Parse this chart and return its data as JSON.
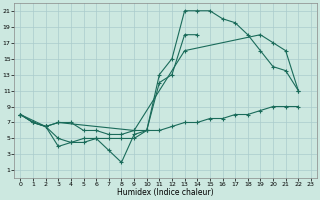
{
  "xlabel": "Humidex (Indice chaleur)",
  "background_color": "#cce8e0",
  "grid_color": "#aacccc",
  "line_color": "#1a6b5a",
  "xlim": [
    -0.5,
    23.5
  ],
  "ylim": [
    0,
    22
  ],
  "xticks": [
    0,
    1,
    2,
    3,
    4,
    5,
    6,
    7,
    8,
    9,
    10,
    11,
    12,
    13,
    14,
    15,
    16,
    17,
    18,
    19,
    20,
    21,
    22,
    23
  ],
  "yticks": [
    1,
    3,
    5,
    7,
    9,
    11,
    13,
    15,
    17,
    19,
    21
  ],
  "lines": [
    {
      "x": [
        0,
        1,
        2,
        3,
        4,
        5,
        6,
        7,
        8,
        9,
        10,
        11,
        12,
        13,
        14,
        15,
        16,
        17,
        18,
        19,
        20,
        21,
        22
      ],
      "y": [
        8,
        7,
        6.5,
        4,
        4.5,
        4.5,
        5,
        3.5,
        2,
        5.5,
        6,
        13,
        15,
        21,
        21,
        21,
        20,
        19.5,
        18,
        16,
        14,
        13.5,
        11
      ]
    },
    {
      "x": [
        0,
        1,
        2,
        3,
        4,
        5,
        6,
        7,
        8,
        9,
        10,
        11,
        12,
        13,
        14
      ],
      "y": [
        8,
        7,
        6.5,
        7,
        7,
        6,
        6,
        5.5,
        5.5,
        6,
        6,
        12,
        13,
        18,
        18
      ]
    },
    {
      "x": [
        0,
        1,
        2,
        3,
        4,
        5,
        6,
        7,
        8,
        9,
        10,
        11,
        12,
        13,
        14,
        15,
        16,
        17,
        18,
        19,
        20,
        21,
        22
      ],
      "y": [
        8,
        7,
        6.5,
        5,
        4.5,
        5,
        5,
        5,
        5,
        5,
        6,
        6,
        6.5,
        7,
        7,
        7.5,
        7.5,
        8,
        8,
        8.5,
        9,
        9,
        9
      ]
    },
    {
      "x": [
        0,
        2,
        3,
        9,
        13,
        19,
        20,
        21,
        22
      ],
      "y": [
        8,
        6.5,
        7,
        6,
        16,
        18,
        17,
        16,
        11
      ]
    }
  ]
}
